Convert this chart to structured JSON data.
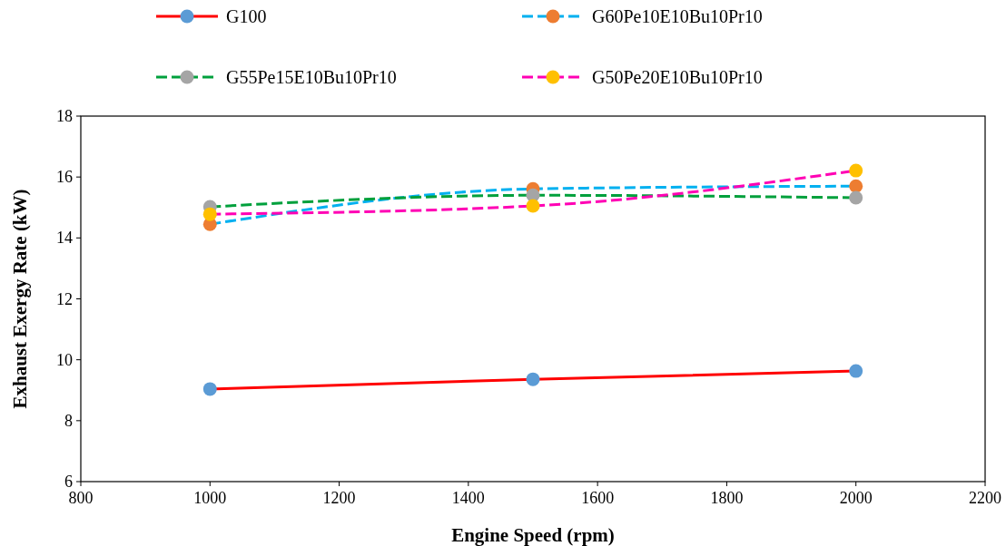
{
  "chart_data": {
    "type": "line",
    "xlabel": "Engine Speed (rpm)",
    "ylabel": "Exhaust Exergy Rate (kW)",
    "x": [
      1000,
      1500,
      2000
    ],
    "series": [
      {
        "name": "G100",
        "color": "#ff0000",
        "colors": [
          "#5b9bd5",
          "#5b9bd5",
          "#5b9bd5"
        ],
        "line_style": "solid",
        "values": [
          9.04,
          9.36,
          9.63
        ]
      },
      {
        "name": "G60Pe10E10Bu10Pr10",
        "color": "#00b0f0",
        "colors": [
          "#ed7d31",
          "#ed7d31",
          "#ed7d31"
        ],
        "line_style": "dashed",
        "values": [
          14.45,
          15.61,
          15.7
        ]
      },
      {
        "name": "G55Pe15E10Bu10Pr10",
        "color": "#00a03c",
        "colors": [
          "#a5a5a5",
          "#a5a5a5",
          "#a5a5a5"
        ],
        "line_style": "dashed",
        "values": [
          15.02,
          15.4,
          15.32
        ]
      },
      {
        "name": "G50Pe20E10Bu10Pr10",
        "color": "#ff00b4",
        "colors": [
          "#ffc000",
          "#ffc000",
          "#ffc000"
        ],
        "line_style": "dashed",
        "values": [
          14.78,
          15.05,
          16.21
        ]
      }
    ],
    "xlim": [
      800,
      2200
    ],
    "xticks": [
      800,
      1000,
      1200,
      1400,
      1600,
      1800,
      2000,
      2200
    ],
    "ylim": [
      6,
      18
    ],
    "yticks": [
      6,
      8,
      10,
      12,
      14,
      16,
      18
    ],
    "marker": "circle",
    "legend": "top",
    "grid": false
  }
}
